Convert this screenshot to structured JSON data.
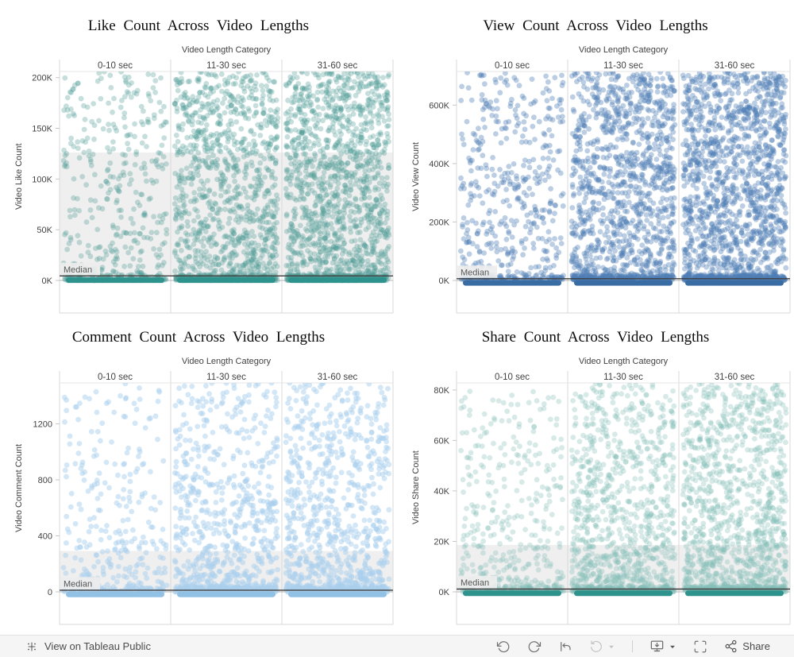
{
  "toolbar": {
    "brand_label": "View on Tableau Public",
    "share_label": "Share",
    "icons": [
      "tableau-logo",
      "undo",
      "redo",
      "replay",
      "refresh",
      "refresh-caret",
      "device-preview",
      "device-preview-caret",
      "fullscreen",
      "share"
    ]
  },
  "chart_data": [
    {
      "type": "scatter",
      "title": "Like Count Across Video Lengths",
      "facet_label": "Video Length Category",
      "categories": [
        "0-10 sec",
        "11-30 sec",
        "31-60 sec"
      ],
      "ylabel": "Video Like Count",
      "ytick_labels": [
        "0K",
        "50K",
        "100K",
        "150K",
        "200K"
      ],
      "ytick_values": [
        0,
        50000,
        100000,
        150000,
        200000
      ],
      "ylim": [
        0,
        206000
      ],
      "median_label": "Median",
      "median_value": 4500,
      "band": [
        4000,
        126000
      ],
      "point_counts": [
        360,
        1000,
        1250
      ],
      "density_bias": [
        1.45,
        1.15,
        1.1
      ],
      "dot_color": "#4E9C96",
      "dot_opacity": 0.32,
      "bar_color": "#2E938D",
      "legend": "none",
      "grid": "zero-line-only"
    },
    {
      "type": "scatter",
      "title": "View Count Across Video Lengths",
      "facet_label": "Video Length Category",
      "categories": [
        "0-10 sec",
        "11-30 sec",
        "31-60 sec"
      ],
      "ylabel": "Video View Count",
      "ytick_labels": [
        "0K",
        "200K",
        "400K",
        "600K"
      ],
      "ytick_values": [
        0,
        200000,
        400000,
        600000
      ],
      "ylim": [
        0,
        715000
      ],
      "median_label": "Median",
      "median_value": 6000,
      "band": null,
      "point_counts": [
        420,
        1100,
        1350
      ],
      "density_bias": [
        1.25,
        1.05,
        1.03
      ],
      "dot_color": "#4E7FB5",
      "dot_opacity": 0.38,
      "bar_color": "#3A6CA4",
      "legend": "none",
      "grid": "zero-line-only"
    },
    {
      "type": "scatter",
      "title": "Comment Count Across Video Lengths",
      "facet_label": "Video Length Category",
      "categories": [
        "0-10 sec",
        "11-30 sec",
        "31-60 sec"
      ],
      "ylabel": "Video Comment Count",
      "ytick_labels": [
        "0",
        "400",
        "800",
        "1200"
      ],
      "ytick_values": [
        0,
        400,
        800,
        1200
      ],
      "ylim": [
        0,
        1492
      ],
      "median_label": "Median",
      "median_value": 12,
      "band": [
        5,
        292
      ],
      "point_counts": [
        300,
        680,
        780
      ],
      "density_bias": [
        2.2,
        1.8,
        1.7
      ],
      "dot_color": "#A9CFEE",
      "dot_opacity": 0.5,
      "bar_color": "#92C1E6",
      "legend": "none",
      "grid": "zero-line-only"
    },
    {
      "type": "scatter",
      "title": "Share Count Across Video Lengths",
      "facet_label": "Video Length Category",
      "categories": [
        "0-10 sec",
        "11-30 sec",
        "31-60 sec"
      ],
      "ylabel": "Video Share Count",
      "ytick_labels": [
        "0K",
        "20K",
        "40K",
        "60K",
        "80K"
      ],
      "ytick_values": [
        0,
        20000,
        40000,
        60000,
        80000
      ],
      "ylim": [
        0,
        82800
      ],
      "median_label": "Median",
      "median_value": 1100,
      "band": [
        400,
        18600
      ],
      "point_counts": [
        380,
        900,
        1100
      ],
      "density_bias": [
        2.0,
        1.55,
        1.45
      ],
      "dot_color": "#83BFB6",
      "dot_opacity": 0.32,
      "bar_color": "#2E938D",
      "legend": "none",
      "grid": "zero-line-only"
    }
  ]
}
